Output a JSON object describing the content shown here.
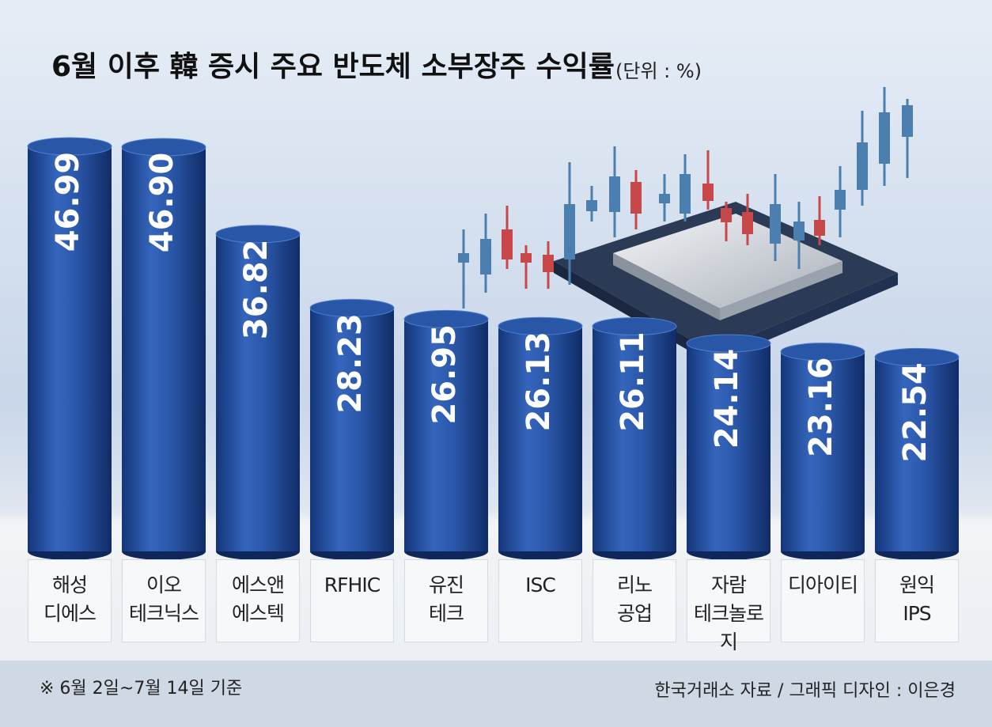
{
  "chart_data": {
    "type": "bar",
    "title": "6월 이후 韓 증시 주요 반도체 소부장주 수익률",
    "subtitle": "(단위 : %)",
    "categories": [
      "해성\n디에스",
      "이오\n테크닉스",
      "에스앤\n에스텍",
      "RFHIC",
      "유진\n테크",
      "ISC",
      "리노\n공업",
      "자람\n테크놀로지",
      "디아이티",
      "원익\nIPS"
    ],
    "values": [
      46.99,
      46.9,
      36.82,
      28.23,
      26.95,
      26.13,
      26.11,
      24.14,
      23.16,
      22.54
    ],
    "value_labels": [
      "46.99",
      "46.90",
      "36.82",
      "28.23",
      "26.95",
      "26.13",
      "26.11",
      "24.14",
      "23.16",
      "22.54"
    ],
    "color": "#2a56a8",
    "footnote": "※ 6월 2일~7월 14일 기준",
    "source": "한국거래소 자료 / 그래픽 디자인 : 이은경"
  }
}
